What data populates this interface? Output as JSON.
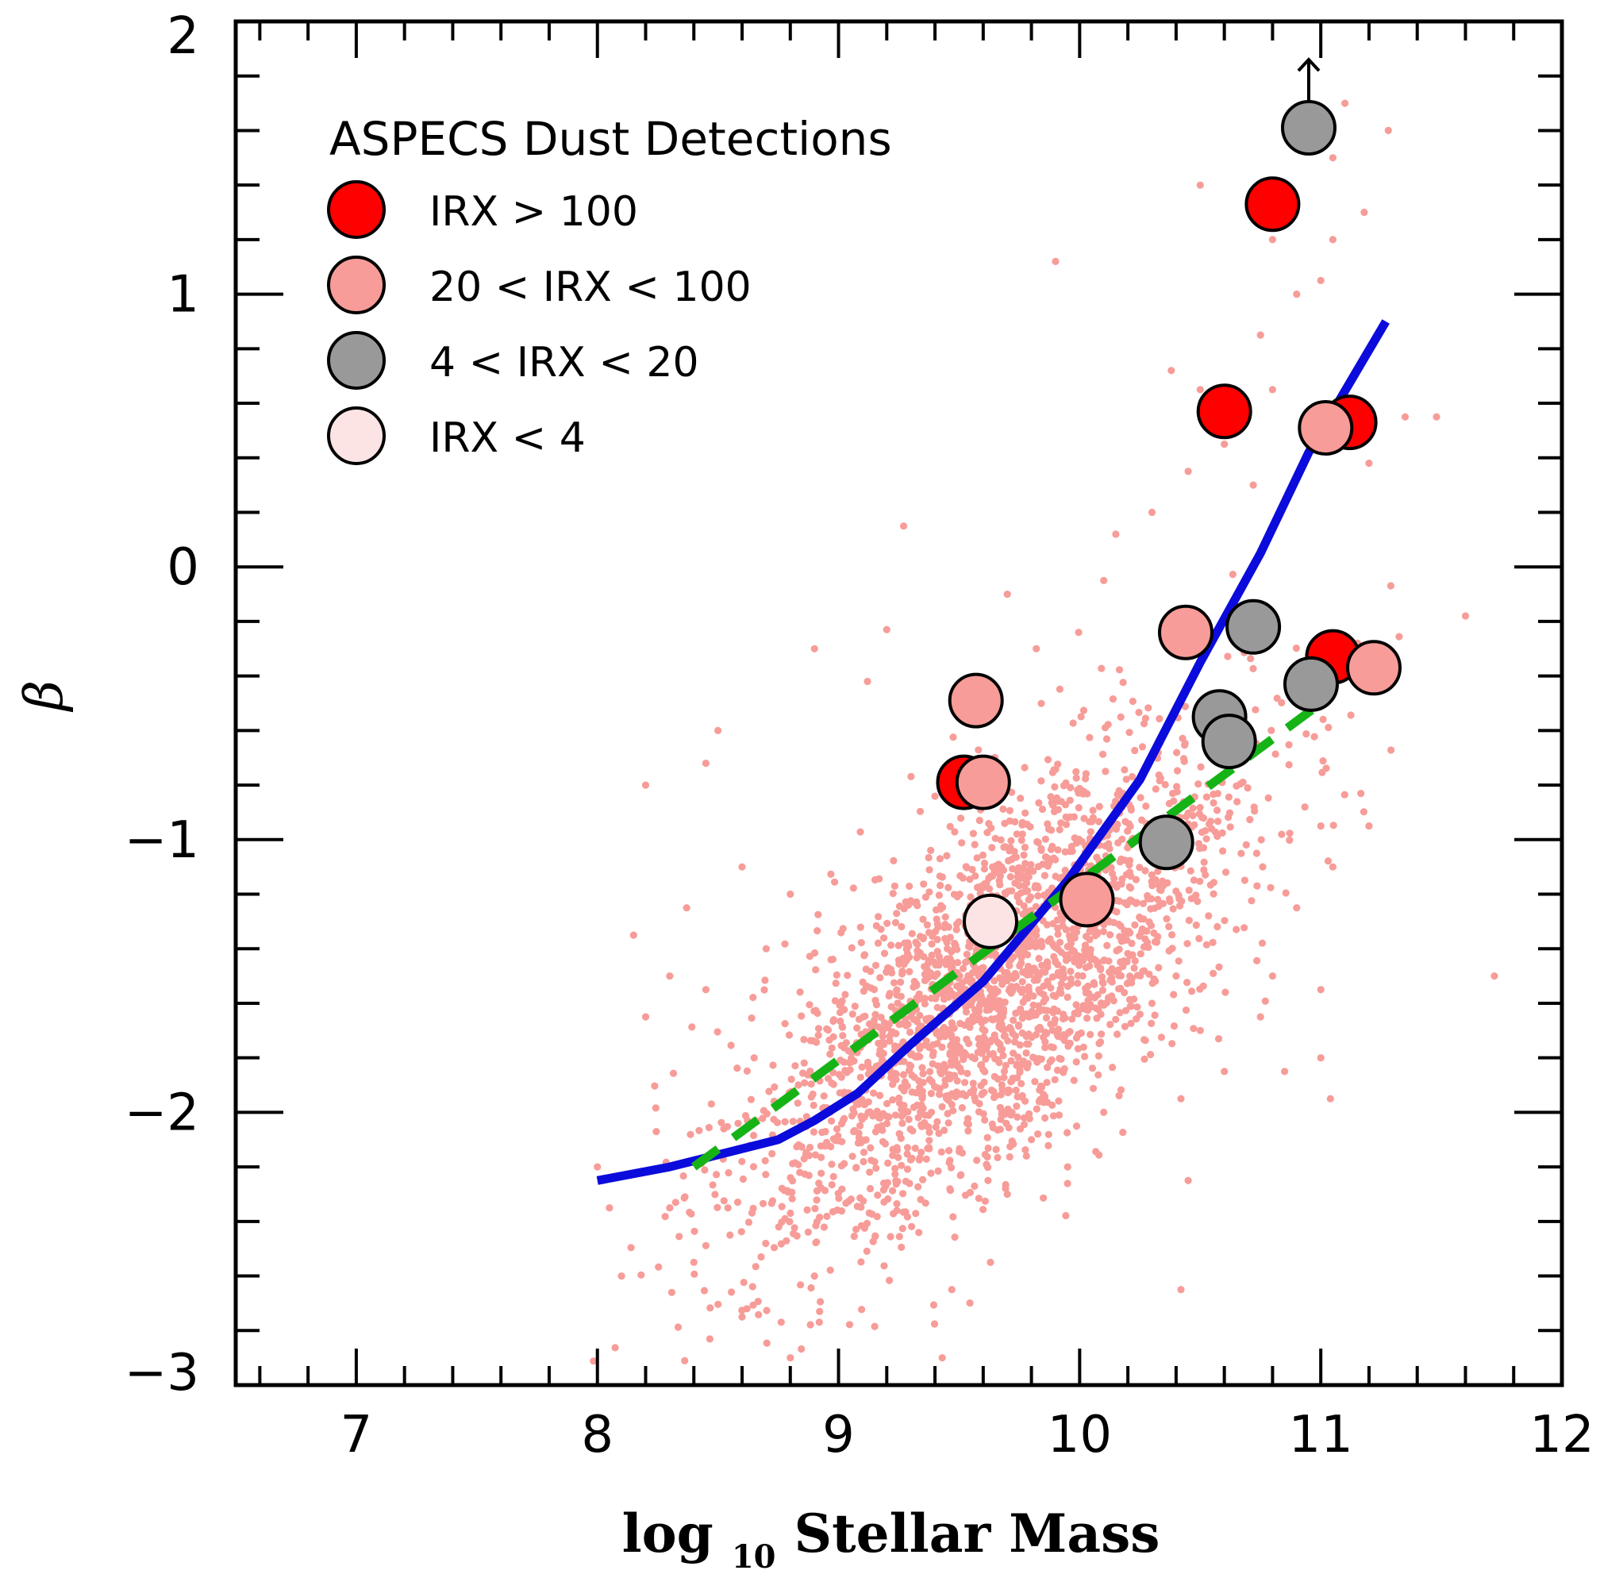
{
  "chart_data": {
    "type": "scatter",
    "title": "",
    "xlabel": "log₁₀ Stellar Mass",
    "xlabel_parts": {
      "main": "log",
      "sub": "10",
      "rest": " Stellar Mass"
    },
    "ylabel": "β",
    "xlim": [
      6.5,
      12
    ],
    "ylim": [
      -3,
      2
    ],
    "x_ticks": [
      7,
      8,
      9,
      10,
      11,
      12
    ],
    "y_ticks": [
      -3,
      -2,
      -1,
      0,
      1,
      2
    ],
    "x_tick_labels": [
      "7",
      "8",
      "9",
      "10",
      "11",
      "12"
    ],
    "y_tick_labels": [
      "−3",
      "−2",
      "−1",
      "0",
      "1",
      "2"
    ],
    "x_minor_step": 0.2,
    "y_minor_step": 0.2,
    "grid": false,
    "colors": {
      "background_points": "#f79c98",
      "blue_line": "#0b0bdc",
      "green_dashed": "#16b316",
      "irx_gt_100": "#ff0000",
      "irx_20_100": "#f79c98",
      "irx_4_20": "#999999",
      "irx_lt_4": "#fde4e4"
    },
    "legend": {
      "title": "ASPECS Dust Detections",
      "placement": "top-left",
      "entries": [
        {
          "key": "irx_gt_100",
          "label": "IRX > 100"
        },
        {
          "key": "irx_20_100",
          "label": "20 < IRX < 100"
        },
        {
          "key": "irx_4_20",
          "label": "4 < IRX < 20"
        },
        {
          "key": "irx_lt_4",
          "label": "IRX < 4"
        }
      ]
    },
    "lines": [
      {
        "key": "blue_line",
        "style": "solid",
        "x": [
          8.0,
          8.3,
          8.75,
          8.9,
          9.08,
          9.3,
          9.6,
          9.95,
          10.25,
          10.5,
          10.75,
          10.95,
          11.27
        ],
        "y": [
          -2.25,
          -2.2,
          -2.1,
          -2.03,
          -1.93,
          -1.75,
          -1.52,
          -1.15,
          -0.78,
          -0.35,
          0.05,
          0.42,
          0.9
        ]
      },
      {
        "key": "green_dashed",
        "style": "dashed",
        "x": [
          8.4,
          11.0
        ],
        "y": [
          -2.2,
          -0.5
        ]
      }
    ],
    "background_sample": {
      "key": "background_points",
      "center_x": 9.65,
      "center_y": -1.55,
      "trend_slope": 0.62,
      "spread_x": 0.52,
      "spread_y": 0.33,
      "count": 2400,
      "outliers": [
        [
          8.15,
          -1.35
        ],
        [
          8.37,
          -1.25
        ],
        [
          8.3,
          -1.5
        ],
        [
          8.2,
          -1.65
        ],
        [
          8.45,
          -1.55
        ],
        [
          8.0,
          -2.2
        ],
        [
          8.05,
          -2.35
        ],
        [
          8.1,
          -2.6
        ],
        [
          8.4,
          -2.55
        ],
        [
          8.6,
          -2.75
        ],
        [
          8.8,
          -2.9
        ],
        [
          9.43,
          -2.9
        ],
        [
          9.47,
          -2.65
        ],
        [
          9.63,
          -2.55
        ],
        [
          8.2,
          -0.8
        ],
        [
          8.45,
          -0.72
        ],
        [
          8.9,
          -0.3
        ],
        [
          9.12,
          -0.42
        ],
        [
          9.2,
          -0.23
        ],
        [
          9.27,
          0.15
        ],
        [
          9.7,
          -0.1
        ],
        [
          9.82,
          -0.3
        ],
        [
          10.1,
          -0.05
        ],
        [
          10.15,
          0.12
        ],
        [
          10.3,
          0.2
        ],
        [
          10.45,
          0.35
        ],
        [
          10.55,
          0.55
        ],
        [
          10.5,
          0.65
        ],
        [
          10.38,
          0.72
        ],
        [
          10.6,
          0.45
        ],
        [
          10.72,
          0.3
        ],
        [
          10.8,
          0.65
        ],
        [
          10.75,
          0.85
        ],
        [
          10.8,
          1.2
        ],
        [
          10.9,
          1.0
        ],
        [
          11.05,
          1.2
        ],
        [
          11.18,
          1.3
        ],
        [
          11.05,
          1.5
        ],
        [
          11.1,
          1.7
        ],
        [
          11.28,
          1.6
        ],
        [
          10.5,
          1.4
        ],
        [
          9.9,
          1.12
        ],
        [
          11.0,
          1.05
        ],
        [
          11.2,
          0.38
        ],
        [
          11.35,
          0.55
        ],
        [
          11.48,
          0.55
        ],
        [
          11.6,
          -0.18
        ],
        [
          11.72,
          -1.5
        ],
        [
          11.05,
          -1.1
        ],
        [
          11.0,
          -0.95
        ],
        [
          11.2,
          -0.95
        ],
        [
          11.0,
          -1.55
        ],
        [
          10.8,
          -1.5
        ],
        [
          10.9,
          -1.25
        ],
        [
          10.75,
          -1.65
        ],
        [
          10.85,
          -1.85
        ],
        [
          10.6,
          -1.85
        ],
        [
          10.5,
          -1.7
        ],
        [
          10.42,
          -1.95
        ],
        [
          10.45,
          -2.25
        ],
        [
          10.42,
          -2.65
        ],
        [
          11.0,
          -1.8
        ],
        [
          11.04,
          -1.95
        ],
        [
          9.62,
          -2.25
        ],
        [
          9.7,
          -2.3
        ],
        [
          9.8,
          -2.1
        ],
        [
          9.95,
          -2.2
        ],
        [
          10.1,
          -2.0
        ],
        [
          10.4,
          -1.5
        ],
        [
          10.3,
          -1.6
        ],
        [
          8.5,
          -0.6
        ],
        [
          8.6,
          -1.1
        ],
        [
          8.7,
          -1.4
        ],
        [
          8.8,
          -1.2
        ],
        [
          8.65,
          -1.8
        ],
        [
          8.3,
          -2.35
        ],
        [
          8.55,
          -2.45
        ],
        [
          8.9,
          -2.6
        ]
      ]
    },
    "detections": [
      {
        "group": "irx_gt_100",
        "points": [
          [
            10.8,
            1.33
          ],
          [
            10.6,
            0.57
          ],
          [
            11.12,
            0.53
          ],
          [
            11.05,
            -0.33
          ],
          [
            9.52,
            -0.79
          ]
        ]
      },
      {
        "group": "irx_20_100",
        "points": [
          [
            9.57,
            -0.49
          ],
          [
            9.6,
            -0.79
          ],
          [
            10.44,
            -0.24
          ],
          [
            11.02,
            0.51
          ],
          [
            11.22,
            -0.37
          ],
          [
            10.03,
            -1.22
          ]
        ]
      },
      {
        "group": "irx_4_20",
        "points": [
          [
            10.95,
            1.61
          ],
          [
            10.72,
            -0.22
          ],
          [
            10.58,
            -0.55
          ],
          [
            10.62,
            -0.64
          ],
          [
            10.96,
            -0.43
          ],
          [
            10.36,
            -1.01
          ]
        ]
      },
      {
        "group": "irx_lt_4",
        "points": [
          [
            9.63,
            -1.3
          ]
        ]
      }
    ],
    "lower_limit_arrow": {
      "x": 10.95,
      "from_y": 1.61,
      "to_y": 1.86,
      "direction": "up"
    }
  }
}
